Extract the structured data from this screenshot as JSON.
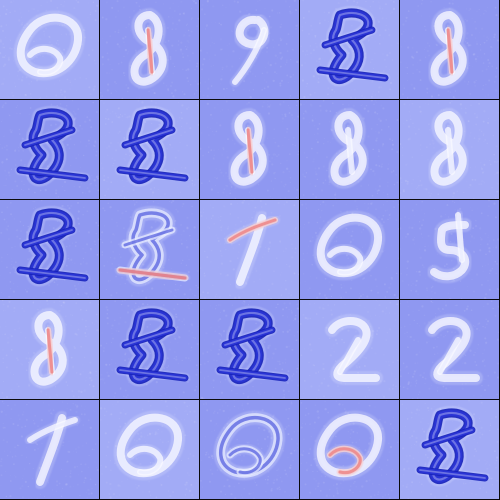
{
  "grid": {
    "rows": 5,
    "cols": 5,
    "colors": {
      "background": "#8f98f1",
      "background_alt": "#a2abf6",
      "stroke_light": "#e7ebff",
      "stroke_white": "#f8f9ff",
      "stroke_blue": "#2a35d6",
      "stroke_blue_dark": "#1621b8",
      "stroke_red": "#f2a3a3",
      "stroke_red_strong": "#ee7f7f",
      "grid_line": "#0b0b0b"
    },
    "tiles": [
      {
        "row": 0,
        "col": 0,
        "glyph": "ring",
        "variant": "light",
        "accent": "none"
      },
      {
        "row": 0,
        "col": 1,
        "glyph": "eight",
        "variant": "light",
        "accent": "red"
      },
      {
        "row": 0,
        "col": 2,
        "glyph": "nine",
        "variant": "light",
        "accent": "none"
      },
      {
        "row": 0,
        "col": 3,
        "glyph": "figure",
        "variant": "blue",
        "accent": "none"
      },
      {
        "row": 0,
        "col": 4,
        "glyph": "eight",
        "variant": "light",
        "accent": "red"
      },
      {
        "row": 1,
        "col": 0,
        "glyph": "figure",
        "variant": "blue",
        "accent": "none"
      },
      {
        "row": 1,
        "col": 1,
        "glyph": "figure",
        "variant": "blue",
        "accent": "none"
      },
      {
        "row": 1,
        "col": 2,
        "glyph": "eight",
        "variant": "light",
        "accent": "red"
      },
      {
        "row": 1,
        "col": 3,
        "glyph": "eight",
        "variant": "light",
        "accent": "none"
      },
      {
        "row": 1,
        "col": 4,
        "glyph": "eight",
        "variant": "light",
        "accent": "none"
      },
      {
        "row": 2,
        "col": 0,
        "glyph": "figure",
        "variant": "blue",
        "accent": "none"
      },
      {
        "row": 2,
        "col": 1,
        "glyph": "figure",
        "variant": "mixed",
        "accent": "red"
      },
      {
        "row": 2,
        "col": 2,
        "glyph": "one",
        "variant": "light",
        "accent": "red"
      },
      {
        "row": 2,
        "col": 3,
        "glyph": "ring",
        "variant": "light",
        "accent": "none"
      },
      {
        "row": 2,
        "col": 4,
        "glyph": "five",
        "variant": "light",
        "accent": "none"
      },
      {
        "row": 3,
        "col": 0,
        "glyph": "eight",
        "variant": "light",
        "accent": "red"
      },
      {
        "row": 3,
        "col": 1,
        "glyph": "figure",
        "variant": "blue",
        "accent": "none"
      },
      {
        "row": 3,
        "col": 2,
        "glyph": "figure",
        "variant": "blue",
        "accent": "none"
      },
      {
        "row": 3,
        "col": 3,
        "glyph": "two",
        "variant": "light",
        "accent": "none"
      },
      {
        "row": 3,
        "col": 4,
        "glyph": "two",
        "variant": "light",
        "accent": "none"
      },
      {
        "row": 4,
        "col": 0,
        "glyph": "one",
        "variant": "light",
        "accent": "none"
      },
      {
        "row": 4,
        "col": 1,
        "glyph": "ring",
        "variant": "light",
        "accent": "none"
      },
      {
        "row": 4,
        "col": 2,
        "glyph": "ring",
        "variant": "mixed",
        "accent": "none"
      },
      {
        "row": 4,
        "col": 3,
        "glyph": "ring",
        "variant": "light",
        "accent": "red"
      },
      {
        "row": 4,
        "col": 4,
        "glyph": "figure",
        "variant": "blue",
        "accent": "none"
      }
    ]
  }
}
